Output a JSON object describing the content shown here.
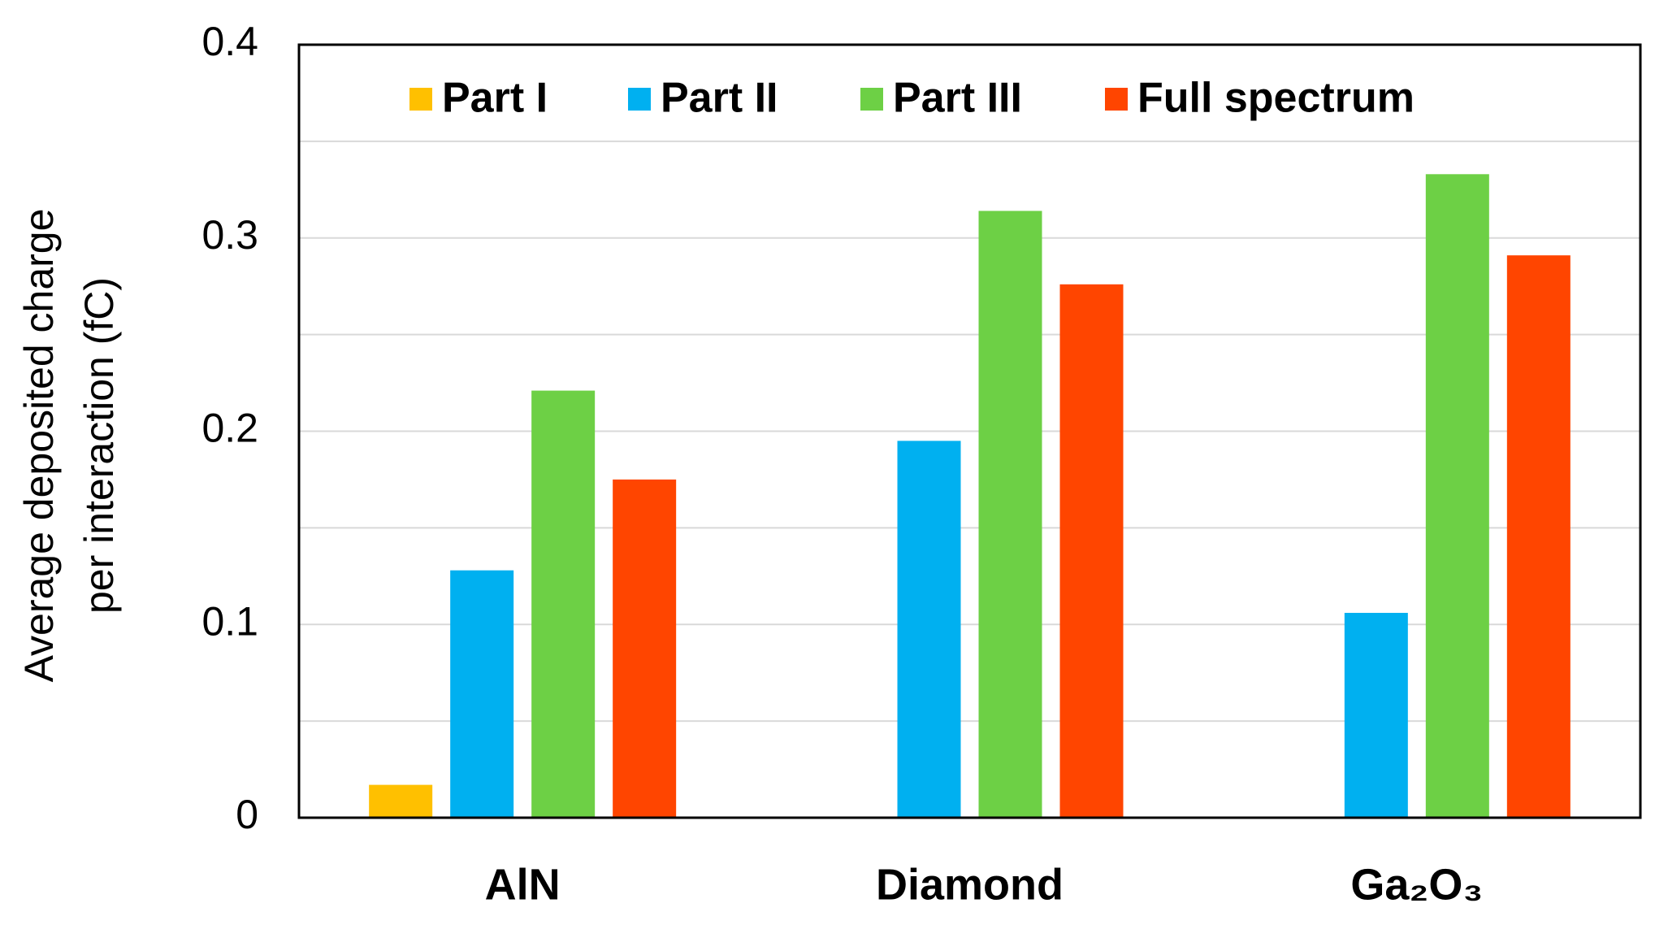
{
  "chart_data": {
    "type": "bar",
    "y_label": [
      "Average deposited charge",
      "per interaction (fC)"
    ],
    "categories": [
      "AlN",
      "Diamond",
      "Ga₂O₃"
    ],
    "series": [
      {
        "name": "Part I",
        "color": "#ffc000",
        "values": [
          0.017,
          null,
          null
        ]
      },
      {
        "name": "Part II",
        "color": "#00b0f0",
        "values": [
          0.128,
          0.195,
          0.106
        ]
      },
      {
        "name": "Part III",
        "color": "#6dd045",
        "values": [
          0.221,
          0.314,
          0.333
        ]
      },
      {
        "name": "Full spectrum",
        "color": "#ff4500",
        "values": [
          0.175,
          0.276,
          0.291
        ]
      }
    ],
    "ylim": [
      0,
      0.4
    ],
    "yticks": [
      0,
      0.1,
      0.2,
      0.3,
      0.4
    ],
    "minor_grid": [
      0.05,
      0.15,
      0.25,
      0.35
    ],
    "grid": true,
    "legend": "top"
  }
}
